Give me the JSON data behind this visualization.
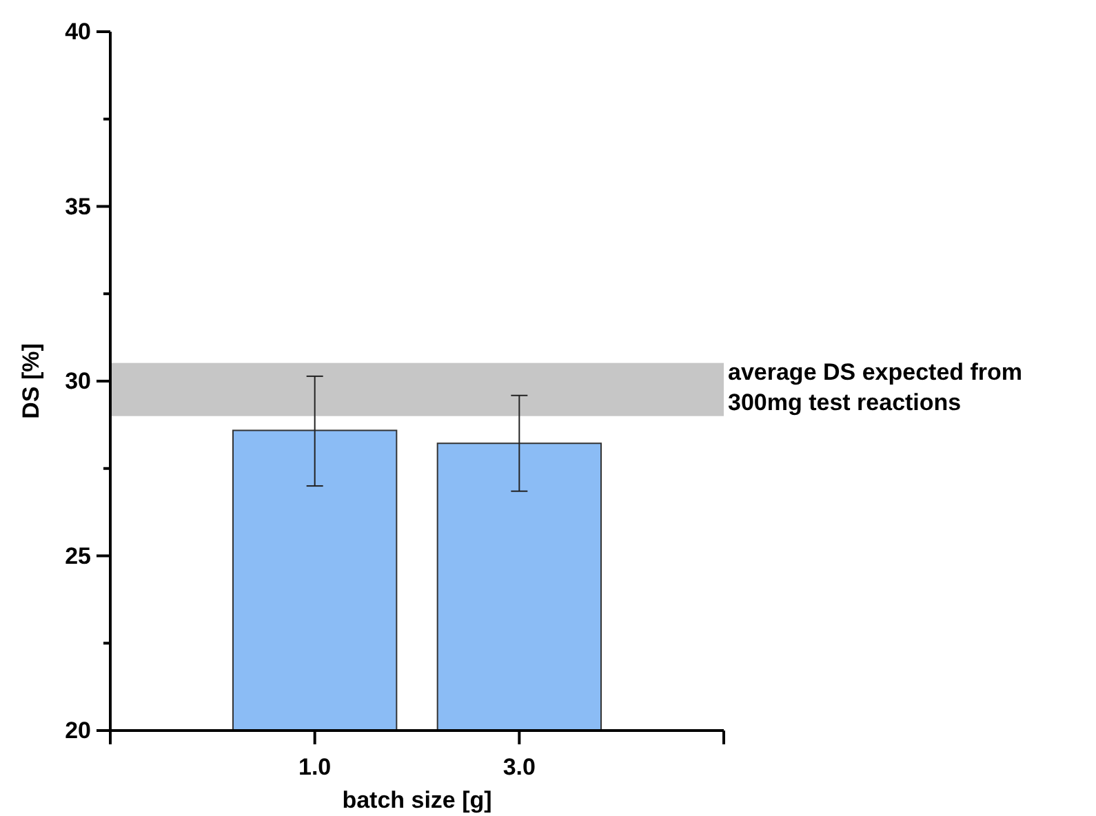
{
  "chart_data": {
    "type": "bar",
    "xlabel": "batch size [g]",
    "ylabel": "DS [%]",
    "categories": [
      "1.0",
      "3.0"
    ],
    "values": [
      28.59,
      28.22
    ],
    "errors": [
      [
        27.0,
        30.14
      ],
      [
        26.85,
        29.59
      ]
    ],
    "color": "#8bbcf5",
    "ylim": [
      20,
      40
    ],
    "yticks": [
      20,
      {
        "value": 22.5,
        "label": null
      },
      25,
      {
        "value": 27.5,
        "label": null
      },
      30,
      {
        "value": 32.5,
        "label": null
      },
      35,
      {
        "value": 37.5,
        "label": null
      },
      40
    ],
    "bands": [
      {
        "axis": "y",
        "from": 29.0,
        "to": 30.52,
        "label": "average DS expected from 300mg test reactions",
        "color": "#c6c6c6"
      }
    ],
    "grid": false
  }
}
